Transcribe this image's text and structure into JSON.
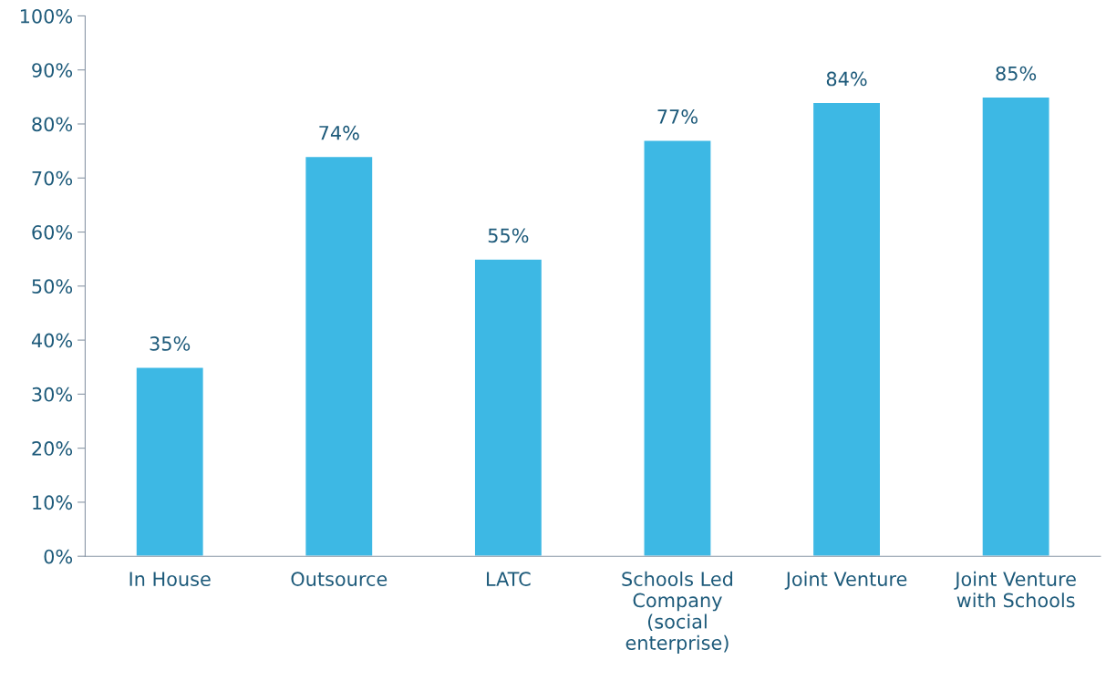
{
  "chart_data": {
    "type": "bar",
    "categories": [
      "In House",
      "Outsource",
      "LATC",
      "Schools Led Company (social enterprise)",
      "Joint Venture",
      "Joint Venture with Schools"
    ],
    "values": [
      35,
      74,
      55,
      77,
      84,
      85
    ],
    "value_labels": [
      "35%",
      "74%",
      "55%",
      "77%",
      "84%",
      "85%"
    ],
    "color": "#3db8e4",
    "ylim": [
      0,
      100
    ],
    "yticks": [
      {
        "value": 0,
        "label": "0%"
      },
      {
        "value": 10,
        "label": "10%"
      },
      {
        "value": 20,
        "label": "20%"
      },
      {
        "value": 30,
        "label": "30%"
      },
      {
        "value": 40,
        "label": "40%"
      },
      {
        "value": 50,
        "label": "50%"
      },
      {
        "value": 60,
        "label": "60%"
      },
      {
        "value": 70,
        "label": "70%"
      },
      {
        "value": 80,
        "label": "80%"
      },
      {
        "value": 90,
        "label": "90%"
      },
      {
        "value": 100,
        "label": "100%"
      }
    ],
    "grid": false,
    "legend": false
  }
}
